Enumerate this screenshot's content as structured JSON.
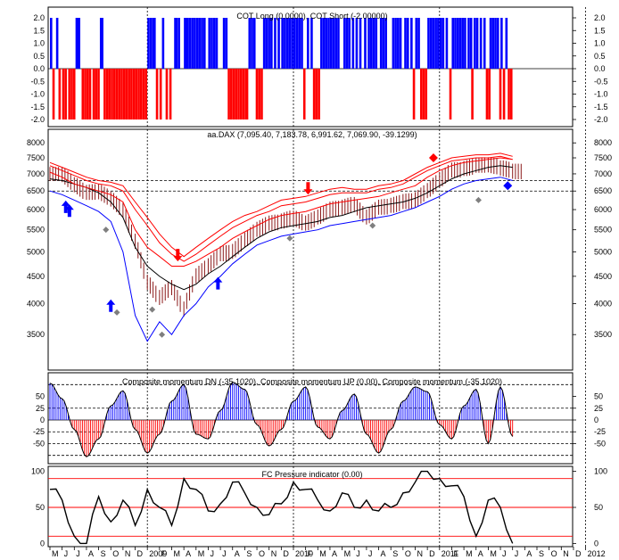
{
  "colors": {
    "positive": "#0000ff",
    "negative": "#ff0000",
    "price": "#8b1a1a",
    "ma": "#000000",
    "band": "#0000ff",
    "envelope": "#ff0000",
    "marker_gray": "#7f7f7f",
    "grid": "#000000"
  },
  "x_axis": {
    "labels": [
      "M",
      "J",
      "J",
      "A",
      "S",
      "O",
      "N",
      "D",
      "2009",
      "F",
      "M",
      "A",
      "M",
      "J",
      "J",
      "A",
      "S",
      "O",
      "N",
      "D",
      "2010",
      "F",
      "M",
      "A",
      "M",
      "J",
      "J",
      "A",
      "S",
      "O",
      "N",
      "D",
      "2011",
      "F",
      "M",
      "A",
      "M",
      "J",
      "J",
      "A",
      "S",
      "O",
      "N",
      "D",
      "2012"
    ],
    "year_markers": [
      "2009",
      "2010",
      "2011",
      "2012"
    ]
  },
  "chart_data": [
    {
      "type": "bar",
      "title": "COT Long (0.0000), COT Short (-2.00000)",
      "ylim": [
        -2.0,
        2.0
      ],
      "yticks": [
        "2.0",
        "1.5",
        "1.0",
        "0.5",
        "0.0",
        "-0.5",
        "-1.0",
        "-1.5",
        "-2.0"
      ],
      "series": [
        {
          "name": "COT Long",
          "color": "#0000ff",
          "value": 2.0,
          "months_active": [
            0,
            0.5,
            2.1,
            2.2,
            2.3,
            4.1,
            4.2,
            8.0,
            8.2,
            8.4,
            8.5,
            9.2,
            10.2,
            10.3,
            10.5,
            11.0,
            11.1,
            11.2,
            11.4,
            11.6,
            11.8,
            12.0,
            12.2,
            12.4,
            12.6,
            13.0,
            13.2,
            13.4,
            13.6,
            14.2,
            14.4,
            16.3,
            16.5,
            16.7,
            17.5,
            17.7,
            17.9,
            18.1,
            18.4,
            18.7,
            19.0,
            19.2,
            19.4,
            19.6,
            19.8,
            20.0,
            20.2,
            20.4,
            20.6,
            21.1,
            21.4,
            22.2,
            22.4,
            22.6,
            22.8,
            23.0,
            23.2,
            23.4,
            23.6,
            24.1,
            24.3,
            24.5,
            24.8,
            25.1,
            25.4,
            25.8,
            26.1,
            26.3,
            26.5,
            26.7,
            27.1,
            27.3,
            27.5,
            28.1,
            28.3,
            28.5,
            28.7,
            29.1,
            29.3,
            29.6,
            30.0,
            30.2,
            31.0,
            31.2,
            31.4,
            31.6,
            31.8,
            32.0,
            32.2,
            32.5,
            33.0,
            33.2,
            33.4,
            33.6,
            33.8,
            34.0,
            34.3,
            34.5,
            34.8,
            35.0,
            35.3,
            35.6,
            36.1,
            36.3,
            36.5,
            36.7,
            37.0,
            37.4
          ]
        },
        {
          "name": "COT Short",
          "color": "#ff0000",
          "value": -2.0,
          "months_active": [
            0.2,
            0.7,
            1.0,
            1.2,
            1.5,
            1.7,
            1.9,
            2.6,
            2.8,
            3.0,
            3.2,
            3.5,
            3.7,
            3.9,
            4.4,
            4.6,
            4.8,
            5.0,
            5.2,
            5.4,
            5.6,
            5.8,
            6.0,
            6.2,
            6.4,
            6.6,
            6.8,
            7.0,
            7.2,
            7.4,
            7.6,
            7.8,
            8.7,
            9.0,
            9.5,
            9.8,
            14.6,
            14.8,
            15.0,
            15.2,
            15.4,
            15.6,
            15.8,
            16.0,
            16.1,
            16.9,
            17.1,
            17.3,
            20.8,
            21.6,
            21.8,
            22.0,
            29.8,
            30.4,
            30.6,
            30.8,
            32.8,
            34.6,
            35.8,
            36.0,
            36.9,
            37.2,
            37.6,
            37.8
          ]
        }
      ]
    },
    {
      "type": "line",
      "title": "aa.DAX (7,095.40, 7,183.78, 6,991.62, 7,069.90, -39.1299)",
      "ylim": [
        3050,
        8100
      ],
      "scale": "log",
      "yticks": [
        "8000",
        "7500",
        "7000",
        "6500",
        "6000",
        "5500",
        "5000",
        "4500",
        "4000",
        "3500"
      ],
      "hlines": [
        6800,
        6500
      ],
      "x_months": [
        0,
        1,
        2,
        3,
        4,
        5,
        6,
        7,
        8,
        9,
        10,
        11,
        12,
        13,
        14,
        15,
        16,
        17,
        18,
        19,
        20,
        21,
        22,
        23,
        24,
        25,
        26,
        27,
        28,
        29,
        30,
        31,
        32,
        33,
        34,
        35,
        36,
        37,
        38
      ],
      "series": [
        {
          "name": "price",
          "values": [
            7000,
            6700,
            6450,
            6500,
            6300,
            6000,
            5250,
            4400,
            4100,
            4300,
            3900,
            4500,
            4700,
            4950,
            5000,
            5250,
            5500,
            5650,
            5700,
            5800,
            5650,
            5800,
            6000,
            6050,
            6150,
            5800,
            6050,
            6100,
            6200,
            6250,
            6500,
            6800,
            7100,
            7150,
            7250,
            7300,
            7200,
            7100,
            7050
          ]
        },
        {
          "name": "moving average",
          "values": [
            6850,
            6800,
            6700,
            6600,
            6450,
            6200,
            5800,
            5100,
            4700,
            4500,
            4350,
            4250,
            4350,
            4550,
            4700,
            4900,
            5100,
            5300,
            5450,
            5550,
            5600,
            5650,
            5700,
            5800,
            5850,
            5950,
            6050,
            6100,
            6150,
            6200,
            6300,
            6450,
            6650,
            6850,
            7000,
            7100,
            7200,
            7250,
            7200
          ]
        },
        {
          "name": "upper band",
          "values": [
            7050,
            6900,
            6700,
            6600,
            6500,
            6400,
            6200,
            5500,
            5100,
            4900,
            4700,
            4700,
            4800,
            4950,
            5100,
            5300,
            5450,
            5600,
            5750,
            5850,
            5900,
            5950,
            6050,
            6150,
            6200,
            6250,
            6300,
            6350,
            6450,
            6550,
            6650,
            6900,
            7100,
            7250,
            7350,
            7400,
            7450,
            7500,
            7450
          ]
        },
        {
          "name": "lower band",
          "values": [
            6500,
            6400,
            6250,
            6100,
            5950,
            5700,
            5000,
            3800,
            3400,
            3700,
            3500,
            3800,
            4000,
            4300,
            4500,
            4750,
            4950,
            5150,
            5250,
            5350,
            5400,
            5450,
            5500,
            5600,
            5650,
            5700,
            5750,
            5800,
            5850,
            5950,
            6050,
            6200,
            6350,
            6550,
            6700,
            6800,
            6850,
            6900,
            6800
          ]
        },
        {
          "name": "upper envelope",
          "values": [
            7350,
            7200,
            7050,
            6900,
            6800,
            6750,
            6650,
            6200,
            5800,
            5400,
            5100,
            4900,
            5100,
            5300,
            5500,
            5700,
            5850,
            5950,
            6100,
            6250,
            6300,
            6350,
            6450,
            6550,
            6600,
            6550,
            6550,
            6650,
            6700,
            6800,
            7000,
            7200,
            7350,
            7500,
            7550,
            7600,
            7600,
            7650,
            7550
          ]
        },
        {
          "name": "upper envelope 2",
          "values": [
            7250,
            7100,
            6950,
            6800,
            6700,
            6650,
            6500,
            6000,
            5600,
            5200,
            4950,
            4800,
            4950,
            5150,
            5350,
            5550,
            5700,
            5850,
            5950,
            6100,
            6150,
            6200,
            6300,
            6400,
            6450,
            6450,
            6450,
            6550,
            6600,
            6700,
            6900,
            7100,
            7250,
            7400,
            7450,
            7500,
            7500,
            7550,
            7450
          ]
        }
      ],
      "markers": [
        {
          "shape": "up-arrow",
          "color": "#0000ff",
          "month": 1.3,
          "value": 6050
        },
        {
          "shape": "up-arrow",
          "color": "#0000ff",
          "month": 1.6,
          "value": 5950
        },
        {
          "shape": "up-arrow",
          "color": "#0000ff",
          "month": 5.0,
          "value": 3950
        },
        {
          "shape": "up-arrow",
          "color": "#0000ff",
          "month": 13.8,
          "value": 4350
        },
        {
          "shape": "down-arrow",
          "color": "#ff0000",
          "month": 10.5,
          "value": 4950
        },
        {
          "shape": "down-arrow",
          "color": "#ff0000",
          "month": 21.2,
          "value": 6600
        },
        {
          "shape": "diamond",
          "color": "#ff0000",
          "month": 31.5,
          "value": 7500
        },
        {
          "shape": "diamond",
          "color": "#0000ff",
          "month": 37.6,
          "value": 6650
        },
        {
          "shape": "diamond",
          "color": "#7f7f7f",
          "month": 4.6,
          "value": 5500
        },
        {
          "shape": "diamond",
          "color": "#7f7f7f",
          "month": 5.5,
          "value": 3850
        },
        {
          "shape": "diamond",
          "color": "#7f7f7f",
          "month": 8.4,
          "value": 3900
        },
        {
          "shape": "diamond",
          "color": "#7f7f7f",
          "month": 9.2,
          "value": 3500
        },
        {
          "shape": "diamond",
          "color": "#7f7f7f",
          "month": 19.7,
          "value": 5300
        },
        {
          "shape": "diamond",
          "color": "#7f7f7f",
          "month": 26.5,
          "value": 5600
        },
        {
          "shape": "diamond",
          "color": "#7f7f7f",
          "month": 35.2,
          "value": 6250
        }
      ]
    },
    {
      "type": "bar",
      "title": "Composite momentum DN (-35.1020), Composite momentum UP (0.00), Composite momentum (-35.1020)",
      "ylim": [
        -85,
        85
      ],
      "yticks": [
        "50",
        "25",
        "0",
        "-25",
        "-50"
      ],
      "hlines": [
        75,
        25,
        0,
        -25,
        -50,
        -75
      ],
      "x_months": [
        0,
        1,
        2,
        3,
        4,
        5,
        6,
        7,
        8,
        9,
        10,
        11,
        12,
        13,
        14,
        15,
        16,
        17,
        18,
        19,
        20,
        21,
        22,
        23,
        24,
        25,
        26,
        27,
        28,
        29,
        30,
        31,
        32,
        33,
        34,
        35,
        36,
        37,
        38
      ],
      "values": [
        78,
        45,
        -20,
        -78,
        -40,
        30,
        62,
        -20,
        -70,
        -30,
        40,
        75,
        -30,
        -40,
        20,
        80,
        65,
        -10,
        -55,
        -20,
        40,
        70,
        -15,
        -40,
        20,
        55,
        -30,
        -70,
        -20,
        40,
        70,
        60,
        -10,
        -40,
        30,
        65,
        -50,
        70,
        -35
      ]
    },
    {
      "type": "line",
      "title": "FC Pressure indicator (0.00)",
      "ylim": [
        -2,
        102
      ],
      "yticks": [
        "100",
        "50",
        "0"
      ],
      "hlines": [
        90,
        50,
        10
      ],
      "x_months": [
        0,
        1,
        2,
        3,
        4,
        5,
        6,
        7,
        8,
        9,
        10,
        11,
        12,
        13,
        14,
        15,
        16,
        17,
        18,
        19,
        20,
        21,
        22,
        23,
        24,
        25,
        26,
        27,
        28,
        29,
        30,
        31,
        32,
        33,
        34,
        35,
        36,
        37,
        38
      ],
      "values": [
        75,
        60,
        10,
        0,
        65,
        30,
        60,
        25,
        75,
        50,
        25,
        90,
        75,
        45,
        55,
        85,
        70,
        50,
        40,
        55,
        85,
        75,
        60,
        45,
        70,
        50,
        60,
        45,
        50,
        70,
        85,
        100,
        90,
        80,
        65,
        10,
        60,
        50,
        0
      ]
    }
  ]
}
